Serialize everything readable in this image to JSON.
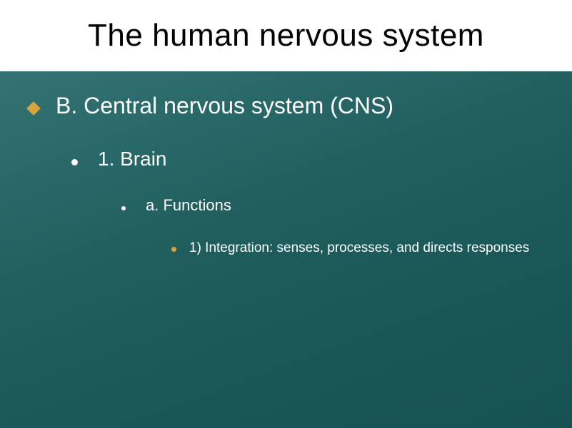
{
  "slide": {
    "title": "The human nervous system",
    "title_fontsize": 44,
    "title_color": "#000000",
    "title_bg": "#ffffff",
    "body_bg_from": "#3a7a7a",
    "body_bg_to": "#165252",
    "text_color": "#ffffff",
    "levels": {
      "l1": {
        "text": "B.  Central nervous system (CNS)",
        "bullet_color": "#d9a43a",
        "fontsize": 32
      },
      "l2": {
        "text": "1.  Brain",
        "bullet_color": "#ffffff",
        "fontsize": 28
      },
      "l3": {
        "text": "a.  Functions",
        "bullet_color": "#ffffff",
        "fontsize": 22
      },
      "l4": {
        "text": "1)  Integration: senses, processes, and directs responses",
        "bullet_color": "#d9a43a",
        "fontsize": 19
      }
    }
  }
}
